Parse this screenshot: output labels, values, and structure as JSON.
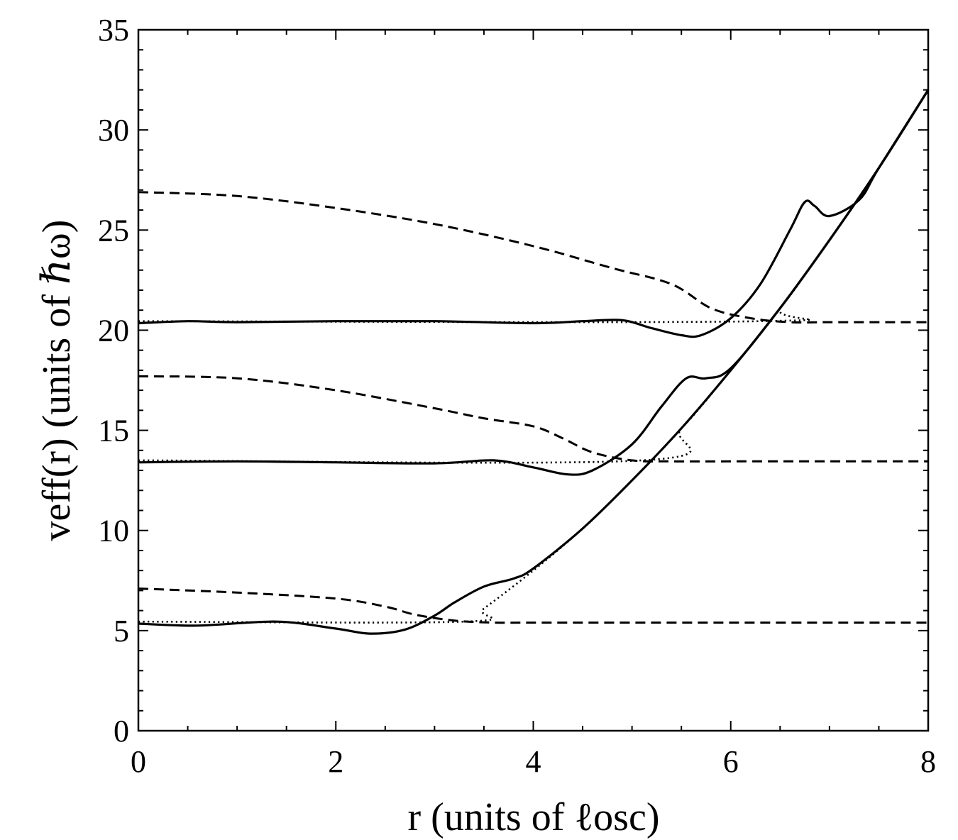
{
  "chart_data": {
    "type": "line",
    "title": "",
    "xlabel": "r   (units of ℓosc)",
    "ylabel": "veff(r)   (units of ℏω)",
    "xlim": [
      0,
      8
    ],
    "ylim": [
      0,
      35
    ],
    "xticks": [
      "0",
      "2",
      "4",
      "6",
      "8"
    ],
    "yticks": [
      "0",
      "5",
      "10",
      "15",
      "20",
      "25",
      "30",
      "35"
    ],
    "grid": false,
    "legend": "none",
    "series": [
      {
        "style": "dotted",
        "x": [
          0,
          3.3,
          3.5,
          4,
          4.5,
          5,
          5.5,
          6,
          6.5,
          7,
          7.5,
          8
        ],
        "y": [
          5.45,
          5.45,
          6.1,
          8.0,
          10.1,
          12.5,
          15.1,
          18.0,
          21.1,
          24.5,
          28.1,
          32.0
        ]
      },
      {
        "style": "dotted",
        "x": [
          0,
          5.1,
          5.5,
          6,
          6.5,
          7,
          7.5,
          8
        ],
        "y": [
          13.5,
          13.5,
          15.1,
          18.0,
          21.1,
          24.5,
          28.1,
          32.0
        ]
      },
      {
        "style": "dotted",
        "x": [
          0,
          6.3,
          6.5,
          7,
          7.5,
          8
        ],
        "y": [
          20.45,
          20.45,
          21.1,
          24.5,
          28.1,
          32.0
        ]
      },
      {
        "style": "dashed",
        "x": [
          0,
          1,
          2,
          2.5,
          2.8,
          3.2,
          3.6,
          4,
          5,
          6,
          7,
          8
        ],
        "y": [
          7.1,
          6.9,
          6.6,
          6.2,
          5.8,
          5.5,
          5.4,
          5.4,
          5.4,
          5.4,
          5.4,
          5.4
        ]
      },
      {
        "style": "dashed",
        "x": [
          0,
          1,
          2,
          3,
          3.5,
          4,
          4.3,
          4.6,
          5,
          5.4,
          6,
          7,
          8
        ],
        "y": [
          17.7,
          17.6,
          17.0,
          16.1,
          15.6,
          15.2,
          14.6,
          13.9,
          13.5,
          13.45,
          13.45,
          13.45,
          13.45
        ]
      },
      {
        "style": "dashed",
        "x": [
          0,
          1,
          2,
          3,
          4,
          4.8,
          5.4,
          5.8,
          6.2,
          6.6,
          7,
          8
        ],
        "y": [
          26.9,
          26.7,
          26.1,
          25.3,
          24.2,
          23.1,
          22.3,
          21.1,
          20.6,
          20.4,
          20.4,
          20.4
        ]
      },
      {
        "style": "solid",
        "x": [
          0,
          0.6,
          1.4,
          2.0,
          2.35,
          2.7,
          3.0,
          3.2,
          3.5,
          3.8,
          4.0,
          4.5,
          5.0,
          5.5,
          6.0,
          6.5,
          7.0,
          7.5,
          8.0
        ],
        "y": [
          5.35,
          5.25,
          5.45,
          5.1,
          4.85,
          5.05,
          5.75,
          6.4,
          7.2,
          7.6,
          8.1,
          10.1,
          12.5,
          15.1,
          18.0,
          21.1,
          24.5,
          28.1,
          32.0
        ]
      },
      {
        "style": "solid",
        "x": [
          0,
          1,
          2,
          3.0,
          3.6,
          4.0,
          4.35,
          4.6,
          5.0,
          5.3,
          5.55,
          5.75,
          6.0,
          6.5,
          7.0,
          7.5,
          8.0
        ],
        "y": [
          13.4,
          13.45,
          13.4,
          13.35,
          13.5,
          13.15,
          12.8,
          13.0,
          14.3,
          16.2,
          17.6,
          17.6,
          18.1,
          21.1,
          24.5,
          28.1,
          32.0
        ]
      },
      {
        "style": "solid",
        "x": [
          0,
          0.5,
          1,
          2,
          3,
          4.0,
          4.5,
          4.9,
          5.2,
          5.5,
          5.7,
          6.0,
          6.3,
          6.6,
          6.75,
          6.85,
          7.0,
          7.3,
          7.5,
          8.0
        ],
        "y": [
          20.35,
          20.45,
          20.4,
          20.45,
          20.45,
          20.35,
          20.45,
          20.5,
          20.1,
          19.75,
          19.75,
          20.6,
          22.3,
          25.0,
          26.4,
          26.2,
          25.7,
          26.5,
          28.1,
          32.0
        ]
      }
    ]
  }
}
